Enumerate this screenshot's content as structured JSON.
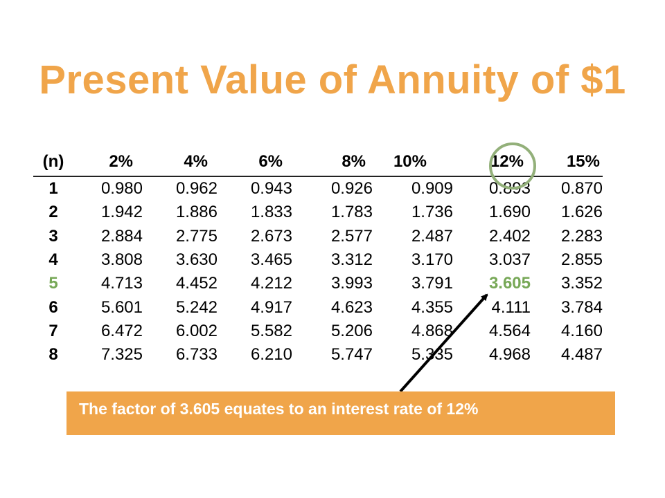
{
  "title": "Present Value of Annuity of $1",
  "table": {
    "headers": [
      "(n)",
      "2%",
      "4%",
      "6%",
      "8%",
      "10%",
      "12%",
      "15%"
    ],
    "rows": [
      {
        "n": "1",
        "values": [
          "0.980",
          "0.962",
          "0.943",
          "0.926",
          "0.909",
          "0.893",
          "0.870"
        ]
      },
      {
        "n": "2",
        "values": [
          "1.942",
          "1.886",
          "1.833",
          "1.783",
          "1.736",
          "1.690",
          "1.626"
        ]
      },
      {
        "n": "3",
        "values": [
          "2.884",
          "2.775",
          "2.673",
          "2.577",
          "2.487",
          "2.402",
          "2.283"
        ]
      },
      {
        "n": "4",
        "values": [
          "3.808",
          "3.630",
          "3.465",
          "3.312",
          "3.170",
          "3.037",
          "2.855"
        ]
      },
      {
        "n": "5",
        "values": [
          "4.713",
          "4.452",
          "4.212",
          "3.993",
          "3.791",
          "3.605",
          "3.352"
        ]
      },
      {
        "n": "6",
        "values": [
          "5.601",
          "5.242",
          "4.917",
          "4.623",
          "4.355",
          "4.111",
          "3.784"
        ]
      },
      {
        "n": "7",
        "values": [
          "6.472",
          "6.002",
          "5.582",
          "5.206",
          "4.868",
          "4.564",
          "4.160"
        ]
      },
      {
        "n": "8",
        "values": [
          "7.325",
          "6.733",
          "6.210",
          "5.747",
          "5.335",
          "4.968",
          "4.487"
        ]
      }
    ],
    "highlight": {
      "row": "5",
      "column": "12%",
      "value": "3.605"
    }
  },
  "callout": "The factor of 3.605 equates to an interest rate of 12%",
  "colors": {
    "title": "#F0A54A",
    "callout_bg": "#F0A54A",
    "callout_text": "#FFFFFF",
    "highlight": "#77A857",
    "circle": "#93B07A",
    "arrow": "#000000"
  }
}
